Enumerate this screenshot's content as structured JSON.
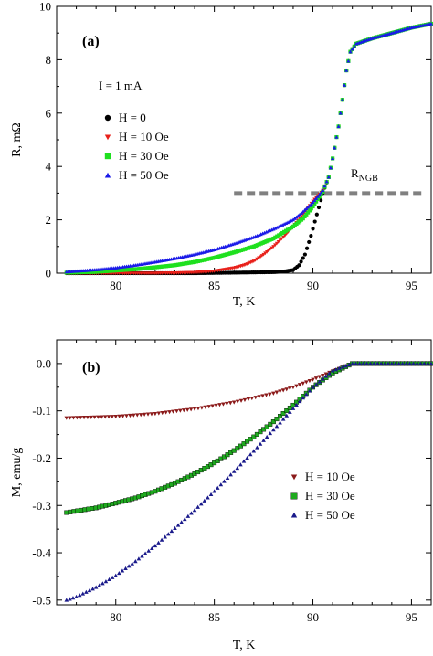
{
  "chart_data": [
    {
      "panel_label": "(a)",
      "type": "scatter",
      "xlabel": "T, K",
      "ylabel": "R, mΩ",
      "xlim": [
        77,
        96
      ],
      "ylim": [
        0,
        10
      ],
      "xticks": [
        80,
        85,
        90,
        95
      ],
      "yticks": [
        0,
        2,
        4,
        6,
        8,
        10
      ],
      "legend_title": "I = 1 mA",
      "legend_position": "left",
      "annotation": {
        "label": "R",
        "subscript": "NGB",
        "value": 3.0,
        "x_range": [
          86,
          95.5
        ],
        "color": "#808080"
      },
      "series": [
        {
          "name": "H = 0",
          "marker": "circle",
          "color": "#000000",
          "points": [
            [
              77.5,
              0.0
            ],
            [
              80,
              0.0
            ],
            [
              82,
              0.0
            ],
            [
              84,
              0.0
            ],
            [
              86,
              0.02
            ],
            [
              87,
              0.03
            ],
            [
              88,
              0.04
            ],
            [
              88.5,
              0.06
            ],
            [
              89,
              0.12
            ],
            [
              89.3,
              0.3
            ],
            [
              89.6,
              0.7
            ],
            [
              89.9,
              1.4
            ],
            [
              90.2,
              2.2
            ],
            [
              90.5,
              3.0
            ],
            [
              90.8,
              3.6
            ],
            [
              91.0,
              4.3
            ],
            [
              91.3,
              5.5
            ],
            [
              91.5,
              6.5
            ],
            [
              91.7,
              7.6
            ],
            [
              91.9,
              8.3
            ],
            [
              92.2,
              8.6
            ],
            [
              93,
              8.8
            ],
            [
              94,
              9.0
            ],
            [
              95,
              9.2
            ],
            [
              96,
              9.35
            ]
          ]
        },
        {
          "name": "H = 10 Oe",
          "marker": "triangle-down",
          "color": "#e8201a",
          "points": [
            [
              77.5,
              0.0
            ],
            [
              80,
              0.0
            ],
            [
              82,
              0.0
            ],
            [
              83,
              0.01
            ],
            [
              84,
              0.03
            ],
            [
              85,
              0.08
            ],
            [
              86,
              0.2
            ],
            [
              86.5,
              0.3
            ],
            [
              87,
              0.45
            ],
            [
              87.5,
              0.7
            ],
            [
              88,
              1.0
            ],
            [
              88.5,
              1.35
            ],
            [
              89,
              1.75
            ],
            [
              89.5,
              2.2
            ],
            [
              90,
              2.7
            ],
            [
              90.5,
              3.1
            ],
            [
              90.8,
              3.6
            ],
            [
              91.0,
              4.3
            ],
            [
              91.3,
              5.5
            ],
            [
              91.5,
              6.5
            ],
            [
              91.7,
              7.6
            ],
            [
              91.9,
              8.3
            ],
            [
              92.2,
              8.6
            ],
            [
              93,
              8.8
            ],
            [
              94,
              9.0
            ],
            [
              95,
              9.2
            ],
            [
              96,
              9.35
            ]
          ]
        },
        {
          "name": "H = 30 Oe",
          "marker": "square",
          "color": "#1fe01f",
          "points": [
            [
              77.5,
              0.02
            ],
            [
              79,
              0.05
            ],
            [
              80,
              0.1
            ],
            [
              81,
              0.15
            ],
            [
              82,
              0.22
            ],
            [
              83,
              0.3
            ],
            [
              84,
              0.42
            ],
            [
              85,
              0.58
            ],
            [
              86,
              0.78
            ],
            [
              87,
              1.0
            ],
            [
              88,
              1.3
            ],
            [
              89,
              1.75
            ],
            [
              89.5,
              2.05
            ],
            [
              90,
              2.5
            ],
            [
              90.5,
              3.05
            ],
            [
              90.8,
              3.6
            ],
            [
              91.0,
              4.3
            ],
            [
              91.3,
              5.5
            ],
            [
              91.5,
              6.5
            ],
            [
              91.7,
              7.6
            ],
            [
              91.9,
              8.3
            ],
            [
              92.2,
              8.6
            ],
            [
              93,
              8.8
            ],
            [
              94,
              9.0
            ],
            [
              95,
              9.2
            ],
            [
              96,
              9.35
            ]
          ]
        },
        {
          "name": "H = 50 Oe",
          "marker": "triangle-up",
          "color": "#1a1ae8",
          "points": [
            [
              77.5,
              0.05
            ],
            [
              79,
              0.13
            ],
            [
              80,
              0.2
            ],
            [
              81,
              0.3
            ],
            [
              82,
              0.42
            ],
            [
              83,
              0.55
            ],
            [
              84,
              0.7
            ],
            [
              85,
              0.88
            ],
            [
              86,
              1.1
            ],
            [
              87,
              1.35
            ],
            [
              88,
              1.65
            ],
            [
              89,
              2.0
            ],
            [
              89.5,
              2.3
            ],
            [
              90,
              2.65
            ],
            [
              90.5,
              3.1
            ],
            [
              90.8,
              3.6
            ],
            [
              91.0,
              4.3
            ],
            [
              91.3,
              5.5
            ],
            [
              91.5,
              6.5
            ],
            [
              91.7,
              7.6
            ],
            [
              91.9,
              8.3
            ],
            [
              92.2,
              8.6
            ],
            [
              93,
              8.8
            ],
            [
              94,
              9.0
            ],
            [
              95,
              9.2
            ],
            [
              96,
              9.35
            ]
          ]
        }
      ]
    },
    {
      "panel_label": "(b)",
      "type": "scatter",
      "xlabel": "T, K",
      "ylabel": "M, emu/g",
      "xlim": [
        77,
        96
      ],
      "ylim": [
        -0.51,
        0.05
      ],
      "xticks": [
        80,
        85,
        90,
        95
      ],
      "yticks": [
        0.0,
        -0.1,
        -0.2,
        -0.3,
        -0.4,
        -0.5
      ],
      "ytick_labels": [
        "0.0",
        "-0.1",
        "-0.2",
        "-0.3",
        "-0.4",
        "-0.5"
      ],
      "legend_position": "right",
      "series": [
        {
          "name": "H = 10 Oe",
          "marker": "triangle-down",
          "color": "#8b1a1a",
          "points": [
            [
              77.5,
              -0.115
            ],
            [
              80,
              -0.112
            ],
            [
              82,
              -0.106
            ],
            [
              84,
              -0.096
            ],
            [
              86,
              -0.082
            ],
            [
              88,
              -0.063
            ],
            [
              89,
              -0.05
            ],
            [
              90,
              -0.034
            ],
            [
              91,
              -0.016
            ],
            [
              92,
              0.0
            ],
            [
              94,
              0.0
            ],
            [
              96,
              0.0
            ]
          ]
        },
        {
          "name": "H = 30 Oe",
          "marker": "square",
          "color": "#1faa1f",
          "points": [
            [
              77.5,
              -0.315
            ],
            [
              79,
              -0.305
            ],
            [
              80,
              -0.295
            ],
            [
              81,
              -0.284
            ],
            [
              82,
              -0.27
            ],
            [
              83,
              -0.253
            ],
            [
              84,
              -0.233
            ],
            [
              85,
              -0.21
            ],
            [
              86,
              -0.184
            ],
            [
              87,
              -0.155
            ],
            [
              88,
              -0.123
            ],
            [
              89,
              -0.088
            ],
            [
              90,
              -0.05
            ],
            [
              91,
              -0.02
            ],
            [
              92,
              0.0
            ],
            [
              94,
              0.0
            ],
            [
              96,
              0.0
            ]
          ]
        },
        {
          "name": "H = 50 Oe",
          "marker": "triangle-up",
          "color": "#1a1a8b",
          "points": [
            [
              77.5,
              -0.5
            ],
            [
              78,
              -0.493
            ],
            [
              79,
              -0.473
            ],
            [
              80,
              -0.448
            ],
            [
              81,
              -0.418
            ],
            [
              82,
              -0.385
            ],
            [
              83,
              -0.348
            ],
            [
              84,
              -0.31
            ],
            [
              85,
              -0.27
            ],
            [
              86,
              -0.228
            ],
            [
              87,
              -0.185
            ],
            [
              88,
              -0.14
            ],
            [
              89,
              -0.095
            ],
            [
              90,
              -0.05
            ],
            [
              91,
              -0.015
            ],
            [
              92,
              0.0
            ],
            [
              94,
              0.0
            ],
            [
              96,
              0.0
            ]
          ]
        }
      ]
    }
  ]
}
